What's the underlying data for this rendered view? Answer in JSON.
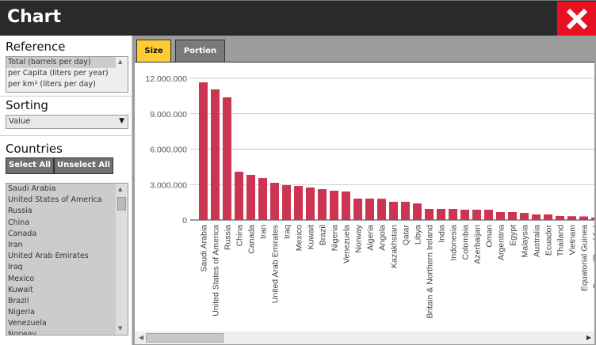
{
  "window": {
    "title": "Chart",
    "close_icon": "close-x-icon",
    "close_color": "#e81123"
  },
  "sidebar": {
    "reference": {
      "title": "Reference",
      "options": [
        "Total (barrels per day)",
        "per Capita (liters per year)",
        "per km² (liters per day)"
      ],
      "selected": "Total (barrels per day)"
    },
    "sorting": {
      "title": "Sorting",
      "value": "Value"
    },
    "countries": {
      "title": "Countries",
      "select_all": "Select All",
      "unselect_all": "Unselect All",
      "items": [
        "Saudi Arabia",
        "United States of America",
        "Russia",
        "China",
        "Canada",
        "Iran",
        "United Arab Emirates",
        "Iraq",
        "Mexico",
        "Kuwait",
        "Brazil",
        "Nigeria",
        "Venezuela",
        "Norway"
      ]
    }
  },
  "tabs": [
    {
      "label": "Size",
      "active": true
    },
    {
      "label": "Portion",
      "active": false
    }
  ],
  "colors": {
    "bar": "#cc3552",
    "tab_active": "#ffcc33",
    "tab_inactive": "#7a7a7a"
  },
  "chart_data": {
    "type": "bar",
    "categories": [
      "Saudi Arabia",
      "United States of America",
      "Russia",
      "China",
      "Canada",
      "Iran",
      "United Arab Emirates",
      "Iraq",
      "Mexico",
      "Kuwait",
      "Brazil",
      "Nigeria",
      "Venezuela",
      "Norway",
      "Algeria",
      "Angola",
      "Kazakhstan",
      "Qatar",
      "Libya",
      "Britain & Northern Ireland",
      "India",
      "Indonesia",
      "Colombia",
      "Azerbaijan",
      "Oman",
      "Argentina",
      "Egypt",
      "Malaysia",
      "Australia",
      "Ecuador",
      "Thailand",
      "Vietnam",
      "Equatorial Guinea",
      "Congo (Republic)"
    ],
    "values": [
      11660000,
      11060000,
      10390000,
      4090000,
      3820000,
      3550000,
      3150000,
      2950000,
      2880000,
      2750000,
      2610000,
      2480000,
      2410000,
      1810000,
      1810000,
      1800000,
      1540000,
      1540000,
      1400000,
      940000,
      940000,
      940000,
      870000,
      870000,
      870000,
      670000,
      670000,
      600000,
      470000,
      470000,
      340000,
      320000,
      300000,
      200000
    ],
    "yticks": [
      "0",
      "3.000.000",
      "6.000.000",
      "9.000.000",
      "12.000.000"
    ],
    "ytick_values": [
      0,
      3000000,
      6000000,
      9000000,
      12000000
    ],
    "ylim": [
      0,
      12000000
    ],
    "grid": true
  }
}
